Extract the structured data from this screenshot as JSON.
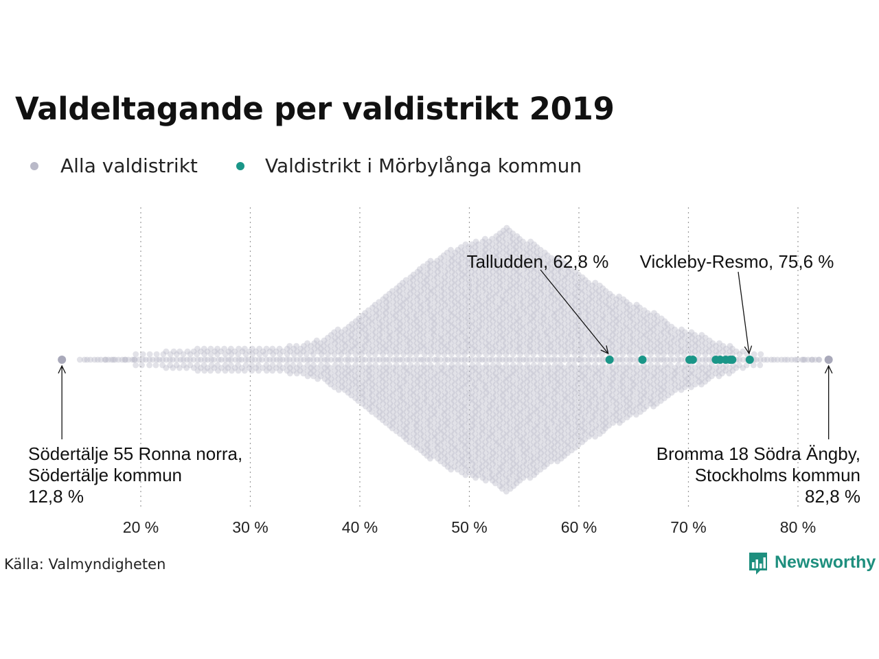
{
  "title": "Valdeltagande per valdistrikt 2019",
  "legend": [
    {
      "label": "Alla valdistrikt",
      "color": "#b9b9c8"
    },
    {
      "label": "Valdistrikt i Mörbylånga kommun",
      "color": "#1a9688"
    }
  ],
  "source": "Källa: Valmyndigheten",
  "brand": {
    "name": "Newsworthy",
    "logo_icon": "newsworthy-bar-chart-icon",
    "color": "#1e8f7e"
  },
  "chart_data": {
    "type": "scatter",
    "subtype": "beeswarm",
    "xlim": [
      12,
      84
    ],
    "grid": "vertical dotted",
    "x_ticks": [
      {
        "value": 20,
        "label": "20 %"
      },
      {
        "value": 30,
        "label": "30 %"
      },
      {
        "value": 40,
        "label": "40 %"
      },
      {
        "value": 50,
        "label": "50 %"
      },
      {
        "value": 60,
        "label": "60 %"
      },
      {
        "value": 70,
        "label": "70 %"
      },
      {
        "value": 80,
        "label": "80 %"
      }
    ],
    "series": [
      {
        "name": "Alla valdistrikt",
        "color": "#b9b9c8",
        "highlight_values": [
          12.8,
          82.8
        ]
      },
      {
        "name": "Valdistrikt i Mörbylånga kommun",
        "color": "#1a9688",
        "values": [
          62.8,
          65.8,
          70.1,
          70.4,
          72.5,
          72.9,
          73.4,
          73.8,
          74.0,
          75.6
        ]
      }
    ],
    "annotations": [
      {
        "value": 62.8,
        "lines": [
          "Talludden, 62,8 %"
        ],
        "position": "above"
      },
      {
        "value": 75.6,
        "lines": [
          "Vickleby-Resmo, 75,6 %"
        ],
        "position": "above"
      },
      {
        "value": 12.8,
        "lines": [
          "Södertälje 55 Ronna norra,",
          "Södertälje kommun",
          "12,8 %"
        ],
        "position": "below-left"
      },
      {
        "value": 82.8,
        "lines": [
          "Bromma 18 Södra Ängby,",
          "Stockholms kommun",
          "82,8 %"
        ],
        "position": "below-right"
      }
    ]
  }
}
